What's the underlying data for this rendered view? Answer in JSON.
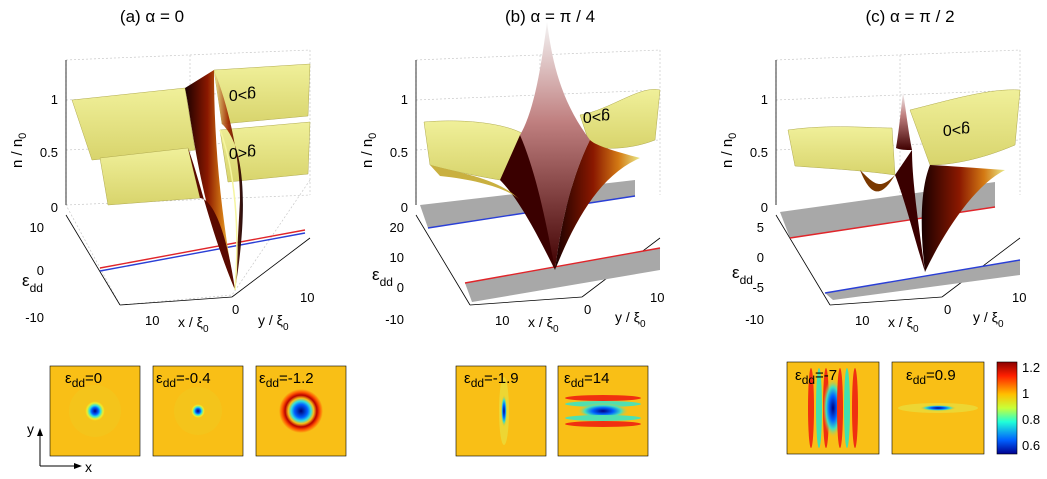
{
  "panels": [
    {
      "title": "(a) α = 0",
      "z_label": "n / n",
      "z_sub": "0",
      "z_ticks": [
        "0",
        "0.5",
        "1"
      ],
      "eps_label": "ε",
      "eps_sub": "dd",
      "eps_ticks": [
        "10",
        "0",
        "-10"
      ],
      "x_label": "x / ξ",
      "x_sub": "0",
      "x_ticks": [
        "10",
        "0"
      ],
      "y_label": "y / ξ",
      "y_sub": "0",
      "y_ticks": [
        "10"
      ],
      "region_labels": [
        "g>0",
        "g<0"
      ],
      "insets": [
        {
          "label": "ε",
          "sub": "dd",
          "value": "=0"
        },
        {
          "label": "ε",
          "sub": "dd",
          "value": "=-0.4"
        },
        {
          "label": "ε",
          "sub": "dd",
          "value": "=-1.2"
        }
      ]
    },
    {
      "title": "(b) α = π / 4",
      "z_label": "n / n",
      "z_sub": "0",
      "z_ticks": [
        "0",
        "0.5",
        "1"
      ],
      "eps_label": "ε",
      "eps_sub": "dd",
      "eps_ticks": [
        "20",
        "10",
        "0",
        "-10"
      ],
      "x_label": "x / ξ",
      "x_sub": "0",
      "x_ticks": [
        "10",
        "0"
      ],
      "y_label": "y / ξ",
      "y_sub": "0",
      "y_ticks": [
        "10"
      ],
      "region_labels": [
        "g>0"
      ],
      "insets": [
        {
          "label": "ε",
          "sub": "dd",
          "value": "=-1.9"
        },
        {
          "label": "ε",
          "sub": "dd",
          "value": "=14"
        }
      ]
    },
    {
      "title": "(c) α = π / 2",
      "z_label": "n / n",
      "z_sub": "0",
      "z_ticks": [
        "0",
        "0.5",
        "1"
      ],
      "eps_label": "ε",
      "eps_sub": "dd",
      "eps_ticks": [
        "5",
        "0",
        "-5",
        "-10"
      ],
      "x_label": "x / ξ",
      "x_sub": "0",
      "x_ticks": [
        "10",
        "0"
      ],
      "y_label": "y / ξ",
      "y_sub": "0",
      "y_ticks": [
        "10"
      ],
      "region_labels": [
        "g>0"
      ],
      "insets": [
        {
          "label": "ε",
          "sub": "dd",
          "value": "=-7"
        },
        {
          "label": "ε",
          "sub": "dd",
          "value": "=0.9"
        }
      ]
    }
  ],
  "colorbar": {
    "ticks": [
      "1.2",
      "1",
      "0.8",
      "0.6"
    ]
  },
  "axes_indicator": {
    "x": "x",
    "y": "y"
  },
  "colors": {
    "surface_light": "#ecec86",
    "surface_mid": "#c9a13a",
    "surface_dark": "#2a0000",
    "line_red": "#e0252a",
    "line_blue": "#2a3fd6",
    "shade": "#a8a8a8",
    "inset_bg": "#f9bf16"
  }
}
